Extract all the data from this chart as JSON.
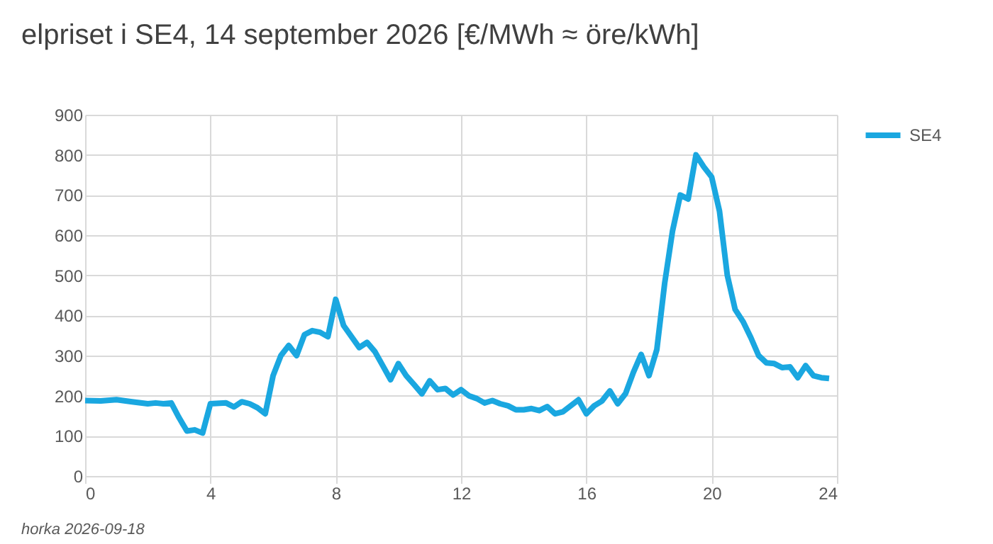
{
  "chart_data": {
    "type": "line",
    "title": "elpriset i SE4, 14 september 2026 [€/MWh ≈ öre/kWh]",
    "x": [
      0,
      0.5,
      1,
      1.5,
      2,
      2.25,
      2.5,
      2.75,
      3,
      3.25,
      3.5,
      3.75,
      4,
      4.5,
      4.75,
      5,
      5.25,
      5.5,
      5.75,
      6,
      6.25,
      6.5,
      6.75,
      7,
      7.25,
      7.5,
      7.75,
      8,
      8.25,
      8.75,
      9,
      9.25,
      9.5,
      9.75,
      10,
      10.25,
      10.5,
      10.75,
      11,
      11.25,
      11.5,
      11.75,
      12,
      12.25,
      12.5,
      12.75,
      13,
      13.25,
      13.5,
      13.75,
      14,
      14.25,
      14.5,
      14.75,
      15,
      15.25,
      15.75,
      16,
      16.25,
      16.5,
      16.75,
      17,
      17.25,
      17.5,
      17.75,
      18,
      18.25,
      18.5,
      18.75,
      19,
      19.25,
      19.5,
      19.75,
      20,
      20.25,
      20.5,
      20.75,
      21,
      21.25,
      21.5,
      21.75,
      22,
      22.25,
      22.5,
      22.75,
      23,
      23.25,
      23.5,
      23.75
    ],
    "series": [
      {
        "name": "SE4",
        "color": "#1aa7e0",
        "values": [
          188,
          187,
          190,
          185,
          180,
          182,
          180,
          182,
          145,
          112,
          115,
          107,
          180,
          182,
          172,
          185,
          180,
          170,
          155,
          250,
          300,
          325,
          300,
          352,
          362,
          358,
          347,
          440,
          375,
          320,
          333,
          310,
          275,
          240,
          280,
          250,
          228,
          205,
          237,
          215,
          218,
          202,
          215,
          200,
          193,
          182,
          188,
          180,
          175,
          165,
          165,
          168,
          163,
          173,
          155,
          160,
          190,
          155,
          175,
          187,
          212,
          180,
          205,
          258,
          303,
          250,
          315,
          480,
          610,
          700,
          690,
          800,
          770,
          745,
          660,
          500,
          415,
          385,
          345,
          300,
          282,
          280,
          270,
          272,
          245,
          275,
          250,
          245,
          243
        ]
      }
    ],
    "xlim": [
      0,
      24
    ],
    "xticks": [
      0,
      4,
      8,
      12,
      16,
      20,
      24
    ],
    "ylim": [
      0,
      900
    ],
    "yticks": [
      0,
      100,
      200,
      300,
      400,
      500,
      600,
      700,
      800,
      900
    ],
    "grid": true,
    "legend": "right",
    "marker": "none",
    "line_style": "solid",
    "annotations": [
      "horka 2026-09-18"
    ]
  }
}
